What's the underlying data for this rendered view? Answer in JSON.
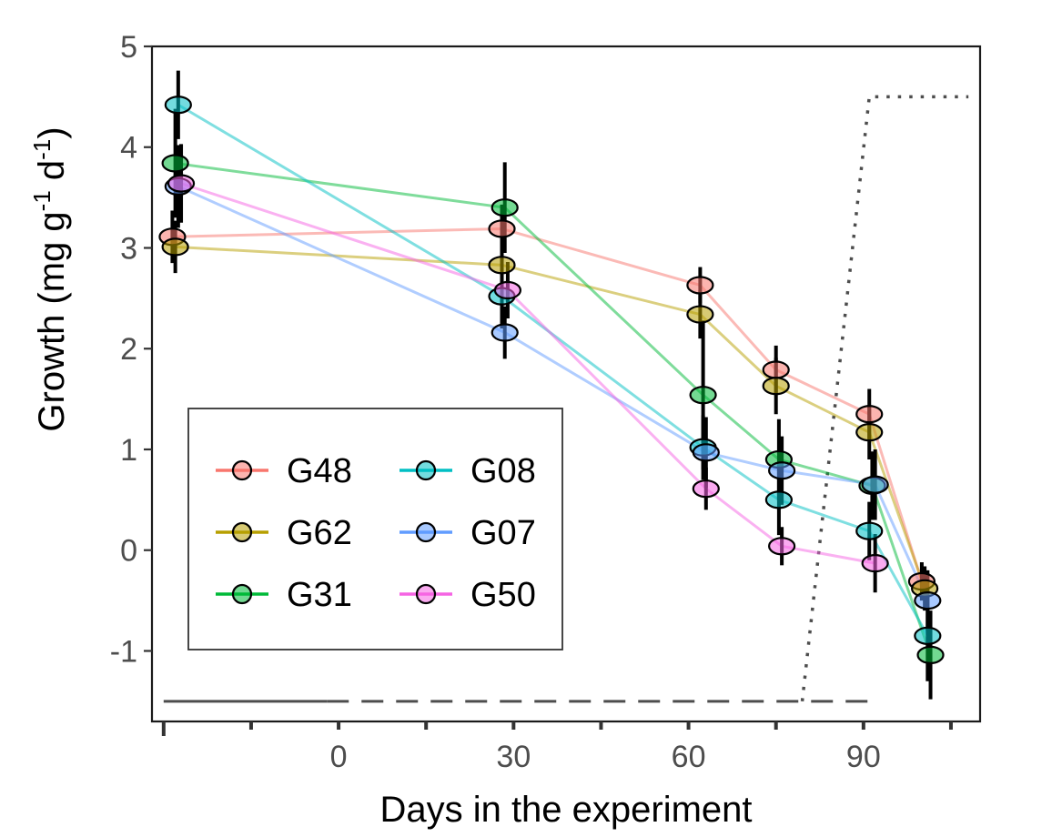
{
  "chart_data": {
    "type": "line",
    "xlabel": "Days in the experiment",
    "ylabel_main": "Growth (mg g",
    "ylabel_sup1": "-1",
    "ylabel_mid": " d",
    "ylabel_sup2": "-1",
    "ylabel_end": ")",
    "xlim": [
      -32,
      110
    ],
    "ylim": [
      -1.7,
      5
    ],
    "x_ticks": [
      0,
      30,
      60,
      90
    ],
    "x_ticks_unlabeled": [
      -30,
      -15,
      15,
      45,
      75,
      105
    ],
    "y_ticks": [
      -1,
      0,
      1,
      2,
      3,
      4,
      5
    ],
    "grid": false,
    "legend_placement": "bottom-left",
    "series": [
      {
        "name": "G48",
        "color": "#F8766D",
        "points": [
          {
            "x": -28.5,
            "y": 3.11,
            "lo": 2.85,
            "hi": 3.37
          },
          {
            "x": 28,
            "y": 3.19,
            "lo": 2.95,
            "hi": 3.43
          },
          {
            "x": 62,
            "y": 2.63,
            "lo": 2.45,
            "hi": 2.81
          },
          {
            "x": 75,
            "y": 1.79,
            "lo": 1.55,
            "hi": 2.03
          },
          {
            "x": 91,
            "y": 1.35,
            "lo": 1.1,
            "hi": 1.6
          },
          {
            "x": 100,
            "y": -0.31,
            "lo": -0.5,
            "hi": -0.12
          }
        ]
      },
      {
        "name": "G62",
        "color": "#B79F00",
        "points": [
          {
            "x": -28,
            "y": 3.01,
            "lo": 2.75,
            "hi": 3.27
          },
          {
            "x": 28,
            "y": 2.83,
            "lo": 2.6,
            "hi": 3.06
          },
          {
            "x": 62,
            "y": 2.34,
            "lo": 2.1,
            "hi": 2.58
          },
          {
            "x": 75,
            "y": 1.63,
            "lo": 1.35,
            "hi": 1.91
          },
          {
            "x": 91,
            "y": 1.17,
            "lo": 0.9,
            "hi": 1.44
          },
          {
            "x": 100.5,
            "y": -0.38,
            "lo": -0.6,
            "hi": -0.16
          }
        ]
      },
      {
        "name": "G31",
        "color": "#00BA38",
        "points": [
          {
            "x": -28,
            "y": 3.84,
            "lo": 3.3,
            "hi": 4.38
          },
          {
            "x": 28.5,
            "y": 3.4,
            "lo": 2.95,
            "hi": 3.85
          },
          {
            "x": 62.5,
            "y": 1.54,
            "lo": 0.8,
            "hi": 2.28
          },
          {
            "x": 75.5,
            "y": 0.9,
            "lo": 0.5,
            "hi": 1.3
          },
          {
            "x": 91.5,
            "y": 0.64,
            "lo": 0.3,
            "hi": 0.98
          },
          {
            "x": 101.5,
            "y": -1.04,
            "lo": -1.48,
            "hi": -0.6
          }
        ]
      },
      {
        "name": "G08",
        "color": "#00BFC4",
        "points": [
          {
            "x": -27.5,
            "y": 4.42,
            "lo": 4.08,
            "hi": 4.76
          },
          {
            "x": 28,
            "y": 2.52,
            "lo": 2.2,
            "hi": 2.84
          },
          {
            "x": 62.5,
            "y": 1.02,
            "lo": 0.7,
            "hi": 1.34
          },
          {
            "x": 75.5,
            "y": 0.5,
            "lo": 0.15,
            "hi": 0.85
          },
          {
            "x": 91,
            "y": 0.19,
            "lo": -0.1,
            "hi": 0.48
          },
          {
            "x": 101,
            "y": -0.85,
            "lo": -1.3,
            "hi": -0.4
          }
        ]
      },
      {
        "name": "G07",
        "color": "#619CFF",
        "points": [
          {
            "x": -27.5,
            "y": 3.61,
            "lo": 3.2,
            "hi": 4.02
          },
          {
            "x": 28.5,
            "y": 2.16,
            "lo": 1.9,
            "hi": 2.42
          },
          {
            "x": 63,
            "y": 0.97,
            "lo": 0.62,
            "hi": 1.32
          },
          {
            "x": 76,
            "y": 0.79,
            "lo": 0.45,
            "hi": 1.13
          },
          {
            "x": 92,
            "y": 0.65,
            "lo": 0.3,
            "hi": 1.0
          },
          {
            "x": 101,
            "y": -0.5,
            "lo": -0.8,
            "hi": -0.2
          }
        ]
      },
      {
        "name": "G50",
        "color": "#F564E3",
        "points": [
          {
            "x": -27,
            "y": 3.64,
            "lo": 3.25,
            "hi": 4.03
          },
          {
            "x": 29,
            "y": 2.58,
            "lo": 2.3,
            "hi": 2.86
          },
          {
            "x": 63,
            "y": 0.61,
            "lo": 0.4,
            "hi": 0.82
          },
          {
            "x": 76,
            "y": 0.04,
            "lo": -0.15,
            "hi": 0.23
          },
          {
            "x": 92,
            "y": -0.13,
            "lo": -0.42,
            "hi": 0.16
          }
        ]
      }
    ],
    "reference_lines": [
      {
        "style": "solid",
        "color": "#4d4d4d",
        "points": [
          [
            -30,
            -1.5
          ],
          [
            -2,
            -1.5
          ]
        ]
      },
      {
        "style": "dashed",
        "color": "#4d4d4d",
        "points": [
          [
            -2,
            -1.5
          ],
          [
            91,
            -1.5
          ]
        ]
      },
      {
        "style": "dotted",
        "color": "#4d4d4d",
        "points": [
          [
            79.5,
            -1.5
          ],
          [
            91,
            4.5
          ],
          [
            108,
            4.5
          ]
        ]
      }
    ]
  }
}
